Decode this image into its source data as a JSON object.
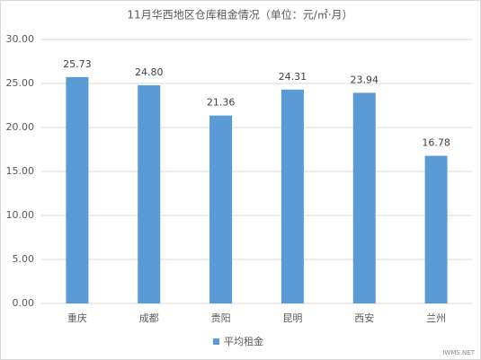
{
  "chart_data": {
    "type": "bar",
    "title": "11月华西地区仓库租金情况（单位：元/㎡·月）",
    "categories": [
      "重庆",
      "成都",
      "贵阳",
      "昆明",
      "西安",
      "兰州"
    ],
    "series": [
      {
        "name": "平均租金",
        "color": "#5b9bd5",
        "values": [
          25.73,
          24.8,
          21.36,
          24.31,
          23.94,
          16.78
        ],
        "value_labels": [
          "25.73",
          "24.80",
          "21.36",
          "24.31",
          "23.94",
          "16.78"
        ]
      }
    ],
    "ylim": [
      0,
      30
    ],
    "yticks": [
      {
        "value": 0,
        "label": "0.00"
      },
      {
        "value": 5,
        "label": "5.00"
      },
      {
        "value": 10,
        "label": "10.00"
      },
      {
        "value": 15,
        "label": "15.00"
      },
      {
        "value": 20,
        "label": "20.00"
      },
      {
        "value": 25,
        "label": "25.00"
      },
      {
        "value": 30,
        "label": "30.00"
      }
    ],
    "grid": true,
    "legend": "bottom",
    "watermark": "IWMS.NET"
  }
}
